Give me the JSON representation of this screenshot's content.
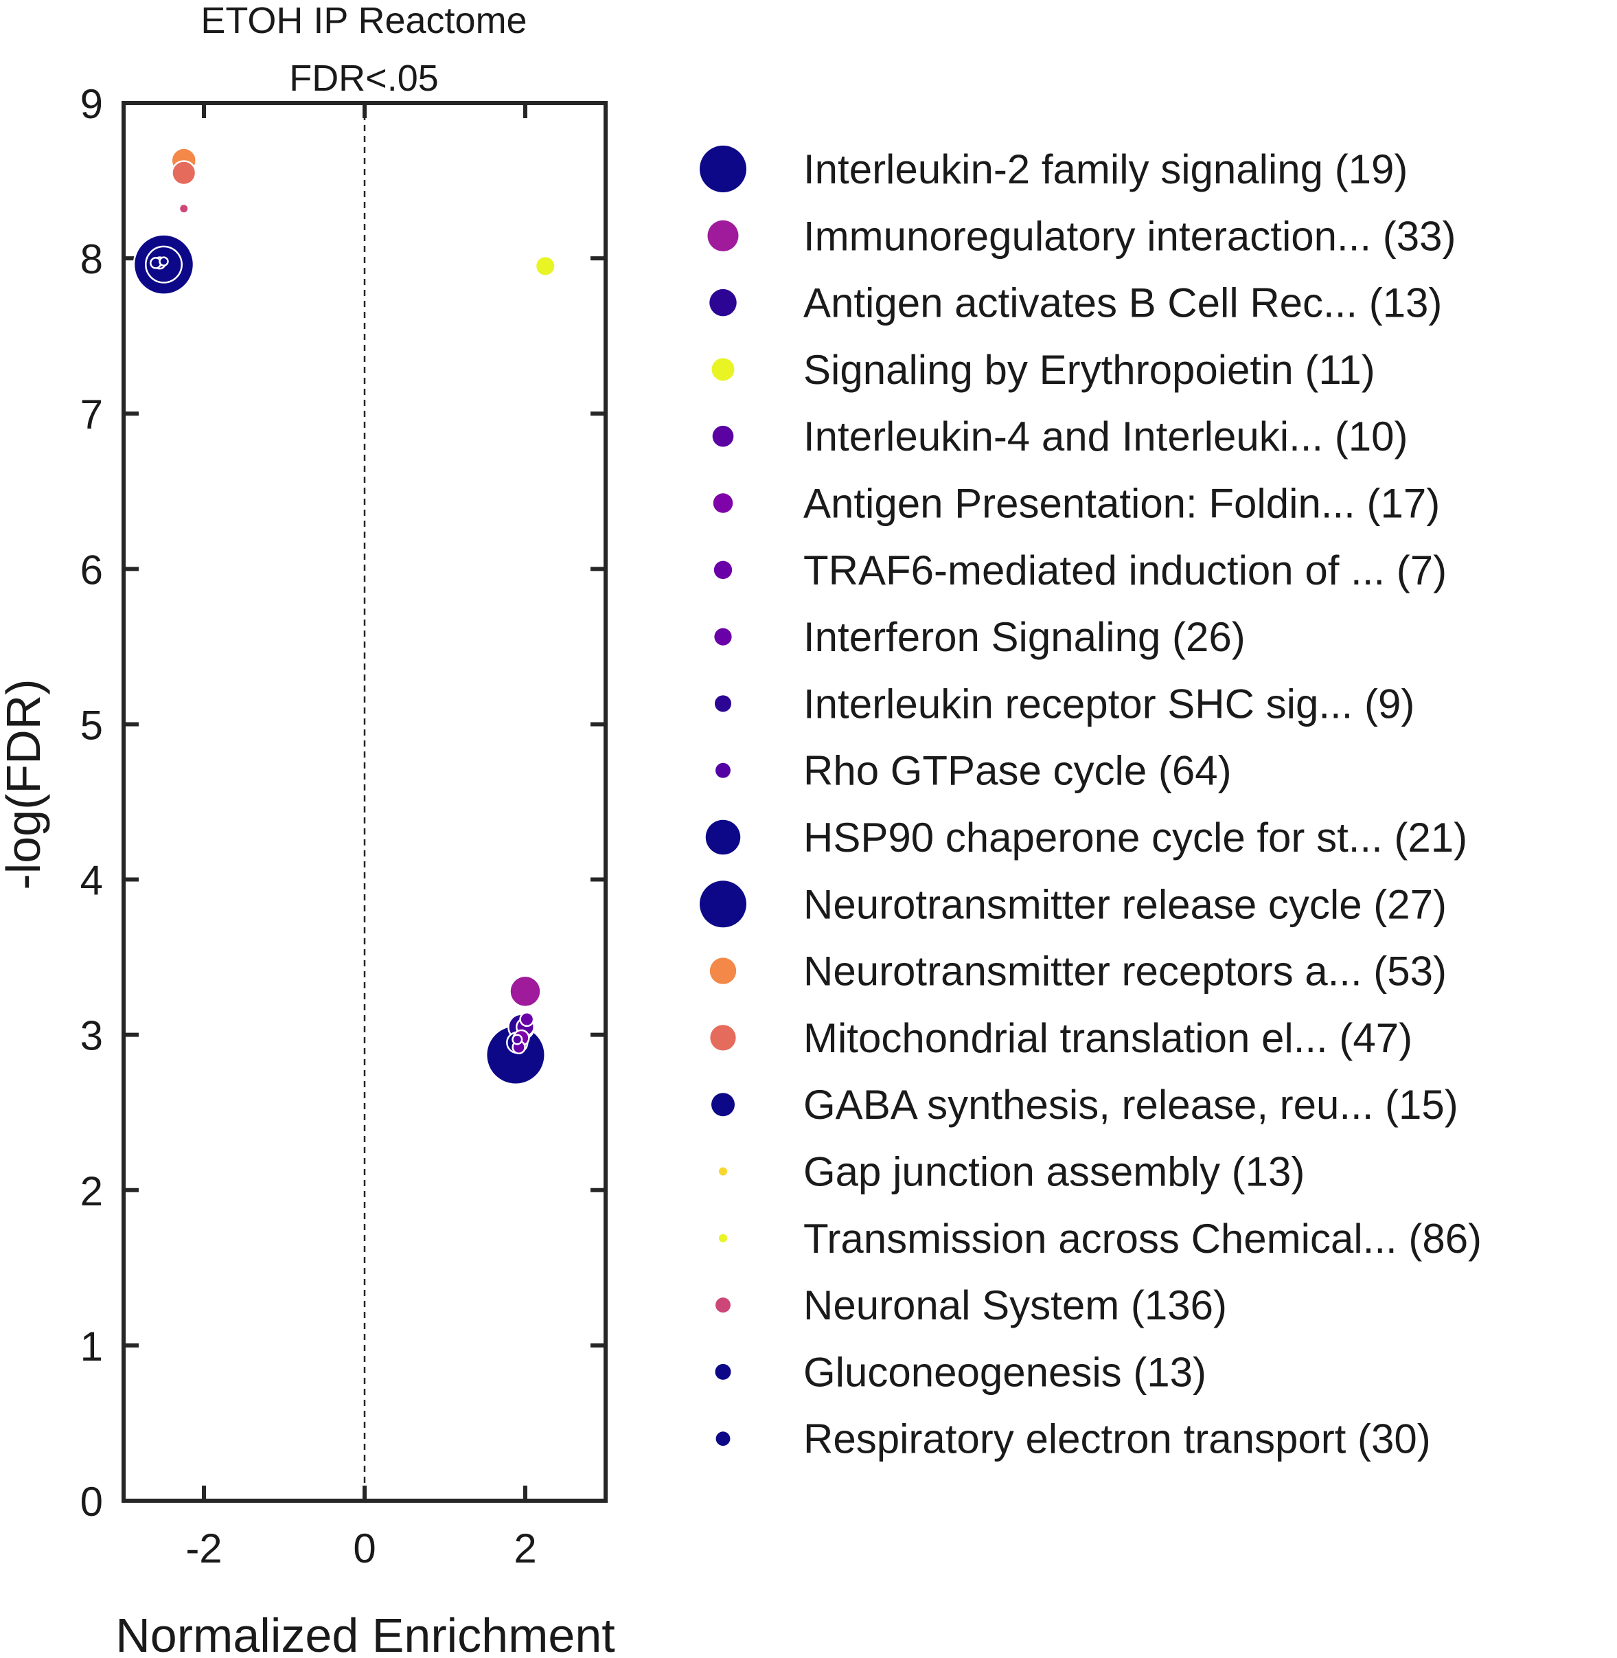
{
  "chart_data": {
    "type": "scatter",
    "title": [
      "ETOH IP Reactome",
      "FDR<.05"
    ],
    "xlabel": "Normalized Enrichment",
    "ylabel": "-log(FDR)",
    "xlim": [
      -3,
      3
    ],
    "ylim": [
      0,
      9
    ],
    "xticks": [
      -2,
      0,
      2
    ],
    "yticks": [
      0,
      1,
      2,
      3,
      4,
      5,
      6,
      7,
      8,
      9
    ],
    "zero_line": "dashed vertical at x = 0",
    "grid": false,
    "legend_position": "right, outside",
    "series": [
      {
        "name": "Interleukin-2 family signaling (19)",
        "color": "#0d0887",
        "x": -2.5,
        "y": 7.96,
        "marker_size": 58
      },
      {
        "name": "Immunoregulatory interaction... (33)",
        "color": "#a01a9c",
        "x": 2.0,
        "y": 3.28,
        "marker_size": 30
      },
      {
        "name": "Antigen activates B Cell Rec... (13)",
        "color": "#2c0594",
        "x": 1.95,
        "y": 3.05,
        "marker_size": 25
      },
      {
        "name": "Signaling by Erythropoietin (11)",
        "color": "#e8f424",
        "x": 2.25,
        "y": 7.95,
        "marker_size": 19
      },
      {
        "name": "Interleukin-4 and Interleuki... (10)",
        "color": "#5b02a3",
        "x": 2.0,
        "y": 3.05,
        "marker_size": 17
      },
      {
        "name": "Antigen Presentation: Foldin... (17)",
        "color": "#7e03a8",
        "x": 1.95,
        "y": 2.98,
        "marker_size": 15
      },
      {
        "name": "TRAF6-mediated induction of ... (7)",
        "color": "#6a00a8",
        "x": 2.02,
        "y": 3.1,
        "marker_size": 13
      },
      {
        "name": "Interferon Signaling (26)",
        "color": "#6a00a8",
        "x": 1.92,
        "y": 2.92,
        "marker_size": 12
      },
      {
        "name": "Interleukin receptor SHC sig... (9)",
        "color": "#2c0594",
        "x": -2.55,
        "y": 7.97,
        "marker_size": 11
      },
      {
        "name": "Rho GTPase cycle (64)",
        "color": "#5302a3",
        "x": 1.9,
        "y": 2.97,
        "marker_size": 9
      },
      {
        "name": "HSP90 chaperone cycle for st... (21)",
        "color": "#0d0887",
        "x": -2.5,
        "y": 7.96,
        "marker_size": 35
      },
      {
        "name": "Neurotransmitter release cycle (27)",
        "color": "#0d0887",
        "x": 1.88,
        "y": 2.87,
        "marker_size": 57
      },
      {
        "name": "Neurotransmitter receptors a... (53)",
        "color": "#f48849",
        "x": -2.25,
        "y": 8.63,
        "marker_size": 24
      },
      {
        "name": "Mitochondrial translation el... (47)",
        "color": "#e56b5d",
        "x": -2.25,
        "y": 8.55,
        "marker_size": 23
      },
      {
        "name": "GABA synthesis, release, reu... (15)",
        "color": "#0d0887",
        "x": 1.9,
        "y": 2.95,
        "marker_size": 20
      },
      {
        "name": "Gap junction assembly (13)",
        "color": "#f7d72d",
        "x": -2.25,
        "y": 8.4,
        "marker_size": 0
      },
      {
        "name": "Transmission across Chemical... (86)",
        "color": "#e8f424",
        "x": 2.25,
        "y": 7.95,
        "marker_size": 0
      },
      {
        "name": "Neuronal System (136)",
        "color": "#cc4778",
        "x": -2.25,
        "y": 8.32,
        "marker_size": 9
      },
      {
        "name": "Gluconeogenesis (13)",
        "color": "#0d0887",
        "x": -2.6,
        "y": 7.97,
        "marker_size": 10
      },
      {
        "name": "Respiratory electron transport (30)",
        "color": "#0d0887",
        "x": -2.5,
        "y": 7.98,
        "marker_size": 8
      }
    ]
  }
}
